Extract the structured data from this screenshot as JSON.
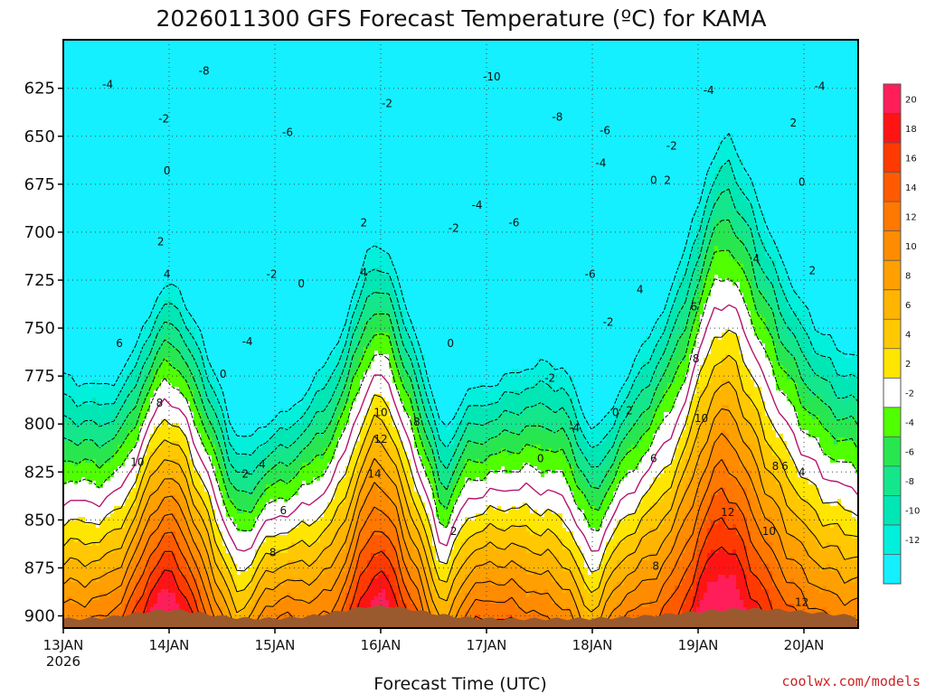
{
  "chart_data": {
    "type": "heatmap",
    "title": "2026011300 GFS Forecast Temperature (ºC) for KAMA",
    "xlabel": "Forecast Time (UTC)",
    "ylabel": "",
    "credit": "coolwx.com/models",
    "y_ticks": [
      625,
      650,
      675,
      700,
      725,
      750,
      775,
      800,
      825,
      850,
      875,
      900
    ],
    "ylim": [
      612,
      905
    ],
    "x_ticks": [
      {
        "label": "13JAN",
        "sub": "2026",
        "day": 0
      },
      {
        "label": "14JAN",
        "day": 1
      },
      {
        "label": "15JAN",
        "day": 2
      },
      {
        "label": "16JAN",
        "day": 3
      },
      {
        "label": "17JAN",
        "day": 4
      },
      {
        "label": "18JAN",
        "day": 5
      },
      {
        "label": "19JAN",
        "day": 6
      },
      {
        "label": "20JAN",
        "day": 7
      }
    ],
    "xlim": [
      0,
      7.5
    ],
    "colorbar": {
      "labels": [
        20,
        18,
        16,
        14,
        12,
        10,
        8,
        6,
        4,
        2,
        -2,
        -4,
        -6,
        -8,
        -10,
        -12
      ],
      "bins": [
        {
          "min": 20,
          "max": 22,
          "color": "#ff1e5a"
        },
        {
          "min": 18,
          "max": 20,
          "color": "#ff1414"
        },
        {
          "min": 16,
          "max": 18,
          "color": "#ff3a00"
        },
        {
          "min": 14,
          "max": 16,
          "color": "#ff5a00"
        },
        {
          "min": 12,
          "max": 14,
          "color": "#ff7800"
        },
        {
          "min": 10,
          "max": 12,
          "color": "#ff8c00"
        },
        {
          "min": 8,
          "max": 10,
          "color": "#ffa000"
        },
        {
          "min": 6,
          "max": 8,
          "color": "#ffb400"
        },
        {
          "min": 4,
          "max": 6,
          "color": "#ffc800"
        },
        {
          "min": 2,
          "max": 4,
          "color": "#ffe600"
        },
        {
          "min": -2,
          "max": 2,
          "color": "#ffffff"
        },
        {
          "min": -4,
          "max": -2,
          "color": "#50ff00"
        },
        {
          "min": -6,
          "max": -4,
          "color": "#28e650"
        },
        {
          "min": -8,
          "max": -6,
          "color": "#14e68c"
        },
        {
          "min": -10,
          "max": -8,
          "color": "#00e6b4"
        },
        {
          "min": -12,
          "max": -10,
          "color": "#00f0dc"
        },
        {
          "min": -14,
          "max": -12,
          "color": "#14f0ff"
        }
      ]
    },
    "terrain_color": "#9b5a2d",
    "contour_labels": [
      {
        "text": "-8",
        "day": 1.33,
        "p": 616
      },
      {
        "text": "-4",
        "day": 0.42,
        "p": 623
      },
      {
        "text": "-2",
        "day": 0.95,
        "p": 641
      },
      {
        "text": "0",
        "day": 0.98,
        "p": 668
      },
      {
        "text": "2",
        "day": 0.92,
        "p": 705
      },
      {
        "text": "4",
        "day": 0.98,
        "p": 722
      },
      {
        "text": "6",
        "day": 0.53,
        "p": 758
      },
      {
        "text": "8",
        "day": 0.91,
        "p": 789
      },
      {
        "text": "10",
        "day": 0.7,
        "p": 820
      },
      {
        "text": "-6",
        "day": 2.12,
        "p": 648
      },
      {
        "text": "-2",
        "day": 1.97,
        "p": 722
      },
      {
        "text": "0",
        "day": 2.25,
        "p": 727
      },
      {
        "text": "-4",
        "day": 1.74,
        "p": 757
      },
      {
        "text": "0",
        "day": 1.51,
        "p": 774
      },
      {
        "text": "2",
        "day": 1.72,
        "p": 826
      },
      {
        "text": "4",
        "day": 1.88,
        "p": 821
      },
      {
        "text": "6",
        "day": 2.08,
        "p": 845
      },
      {
        "text": "8",
        "day": 1.98,
        "p": 867
      },
      {
        "text": "-10",
        "day": 4.05,
        "p": 619
      },
      {
        "text": "-8",
        "day": 4.67,
        "p": 640
      },
      {
        "text": "-6",
        "day": 5.12,
        "p": 647
      },
      {
        "text": "-2",
        "day": 3.06,
        "p": 633
      },
      {
        "text": "2",
        "day": 2.84,
        "p": 695
      },
      {
        "text": "4",
        "day": 2.84,
        "p": 721
      },
      {
        "text": "10",
        "day": 3.0,
        "p": 794
      },
      {
        "text": "8",
        "day": 3.34,
        "p": 799
      },
      {
        "text": "12",
        "day": 3.0,
        "p": 808
      },
      {
        "text": "14",
        "day": 2.94,
        "p": 826
      },
      {
        "text": "-4",
        "day": 3.91,
        "p": 686
      },
      {
        "text": "-6",
        "day": 4.26,
        "p": 695
      },
      {
        "text": "-2",
        "day": 3.69,
        "p": 698
      },
      {
        "text": "0",
        "day": 3.66,
        "p": 758
      },
      {
        "text": "2",
        "day": 3.69,
        "p": 856
      },
      {
        "text": "0",
        "day": 4.51,
        "p": 818
      },
      {
        "text": "-2",
        "day": 4.6,
        "p": 776
      },
      {
        "text": "-4",
        "day": 4.83,
        "p": 802
      },
      {
        "text": "-6",
        "day": 4.98,
        "p": 722
      },
      {
        "text": "-2",
        "day": 5.15,
        "p": 747
      },
      {
        "text": "-4",
        "day": 5.08,
        "p": 664
      },
      {
        "text": "-4",
        "day": 6.1,
        "p": 626
      },
      {
        "text": "-4",
        "day": 7.15,
        "p": 624
      },
      {
        "text": "-2",
        "day": 5.75,
        "p": 655
      },
      {
        "text": "2",
        "day": 6.9,
        "p": 643
      },
      {
        "text": "0",
        "day": 5.58,
        "p": 673
      },
      {
        "text": "2",
        "day": 5.71,
        "p": 673
      },
      {
        "text": "0",
        "day": 6.98,
        "p": 674
      },
      {
        "text": "4",
        "day": 5.45,
        "p": 730
      },
      {
        "text": "2",
        "day": 7.08,
        "p": 720
      },
      {
        "text": "4",
        "day": 6.55,
        "p": 714
      },
      {
        "text": "6",
        "day": 5.96,
        "p": 739
      },
      {
        "text": "8",
        "day": 5.98,
        "p": 766
      },
      {
        "text": "10",
        "day": 6.03,
        "p": 797
      },
      {
        "text": "12",
        "day": 6.28,
        "p": 846
      },
      {
        "text": "10",
        "day": 6.67,
        "p": 856
      },
      {
        "text": "8",
        "day": 6.73,
        "p": 822
      },
      {
        "text": "6",
        "day": 6.82,
        "p": 822
      },
      {
        "text": "4",
        "day": 6.98,
        "p": 825
      },
      {
        "text": "6",
        "day": 5.58,
        "p": 818
      },
      {
        "text": "8",
        "day": 5.6,
        "p": 874
      },
      {
        "text": "12",
        "day": 6.98,
        "p": 893
      },
      {
        "text": "0",
        "day": 5.22,
        "p": 794
      },
      {
        "text": "2",
        "day": 5.35,
        "p": 793
      }
    ]
  }
}
